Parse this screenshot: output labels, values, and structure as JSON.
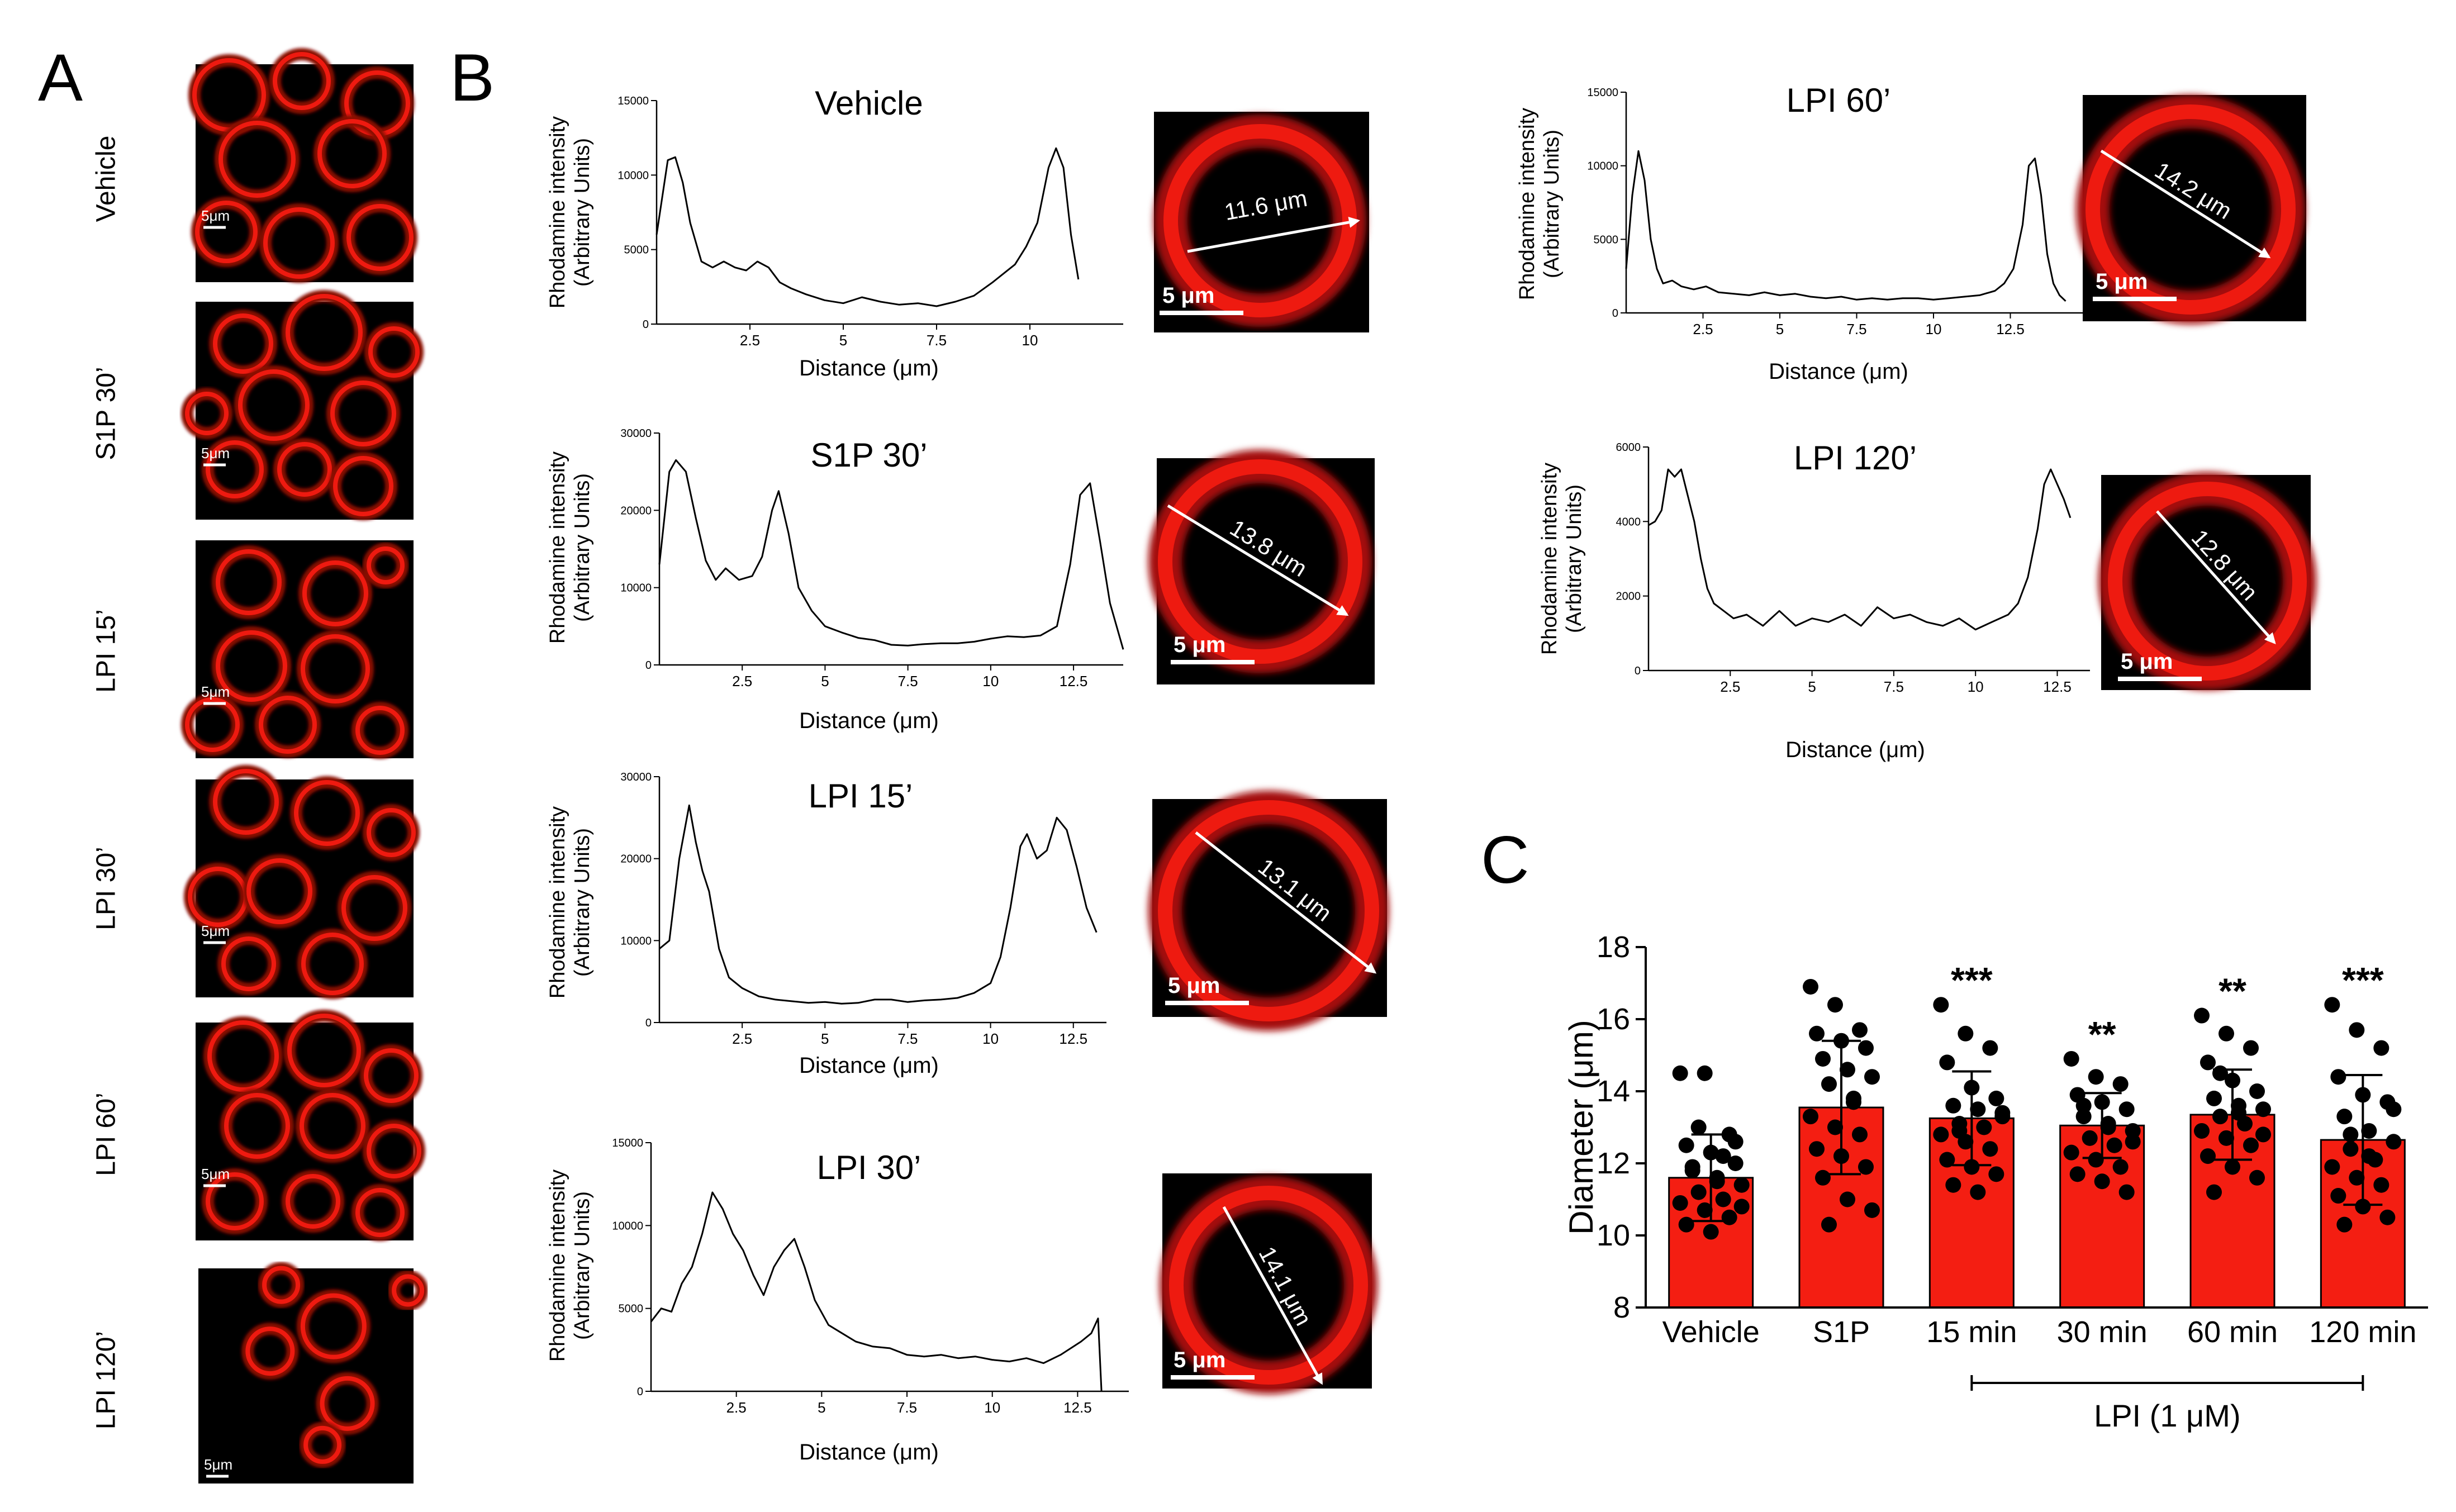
{
  "panel_labels": {
    "a": "A",
    "b": "B",
    "c": "C"
  },
  "colors": {
    "bar": "#f41e12",
    "cell": "#ee1a10",
    "background": "#000000",
    "line": "#000000"
  },
  "panel_a": {
    "scale_label": "5μm",
    "images": [
      {
        "label": "Vehicle"
      },
      {
        "label": "S1P 30’"
      },
      {
        "label": "LPI 15’"
      },
      {
        "label": "LPI 30’"
      },
      {
        "label": "LPI 60’"
      },
      {
        "label": "LPI 120’"
      }
    ]
  },
  "micrographs_b": [
    {
      "measure": "11.6 μm",
      "scale": "5 μm"
    },
    {
      "measure": "13.8 μm",
      "scale": "5 μm"
    },
    {
      "measure": "13.1 μm",
      "scale": "5 μm"
    },
    {
      "measure": "14.1 μm",
      "scale": "5 μm"
    },
    {
      "measure": "14.2 μm",
      "scale": "5 μm"
    },
    {
      "measure": "12.8 μm",
      "scale": "5 μm"
    }
  ],
  "chart_data": [
    {
      "type": "line",
      "title": "Vehicle",
      "xlabel": "Distance (μm)",
      "ylabel": [
        "Rhodamine intensity",
        "(Arbitrary Units)"
      ],
      "xlim": [
        0,
        12.5
      ],
      "ylim": [
        0,
        15000
      ],
      "xticks": [
        2.5,
        5.0,
        7.5,
        10
      ],
      "yticks": [
        0,
        5000,
        10000,
        15000
      ],
      "x": [
        0,
        0.3,
        0.5,
        0.7,
        0.9,
        1.2,
        1.5,
        1.8,
        2.1,
        2.4,
        2.7,
        3.0,
        3.3,
        3.6,
        4,
        4.5,
        5,
        5.5,
        6,
        6.5,
        7,
        7.5,
        8,
        8.5,
        9,
        9.3,
        9.6,
        9.9,
        10.2,
        10.5,
        10.7,
        10.9,
        11.1,
        11.3
      ],
      "y": [
        6000,
        11000,
        11200,
        9500,
        6800,
        4200,
        3800,
        4200,
        3800,
        3600,
        4200,
        3800,
        2800,
        2400,
        2000,
        1600,
        1400,
        1800,
        1500,
        1300,
        1400,
        1200,
        1500,
        1900,
        2800,
        3400,
        4000,
        5200,
        6800,
        10500,
        11800,
        10500,
        6000,
        3000
      ]
    },
    {
      "type": "line",
      "title": "S1P 30’",
      "xlabel": "Distance (μm)",
      "ylabel": [
        "Rhodamine intensity",
        "(Arbitrary Units)"
      ],
      "xlim": [
        0,
        14
      ],
      "ylim": [
        0,
        30000
      ],
      "xticks": [
        2.5,
        5.0,
        7.5,
        10,
        12.5
      ],
      "yticks": [
        0,
        10000,
        20000,
        30000
      ],
      "x": [
        0,
        0.3,
        0.5,
        0.8,
        1.1,
        1.4,
        1.7,
        2.0,
        2.4,
        2.8,
        3.1,
        3.4,
        3.6,
        3.9,
        4.2,
        4.6,
        5,
        5.5,
        6,
        6.5,
        7,
        7.5,
        8,
        8.5,
        9,
        9.5,
        10,
        10.5,
        11,
        11.5,
        12,
        12.4,
        12.7,
        13.0,
        13.3,
        13.6,
        14
      ],
      "y": [
        13000,
        25000,
        26500,
        25000,
        19000,
        13500,
        11000,
        12500,
        11000,
        11500,
        14000,
        20000,
        22500,
        17000,
        10000,
        7000,
        5000,
        4200,
        3500,
        3200,
        2600,
        2500,
        2700,
        2800,
        2800,
        3000,
        3400,
        3700,
        3600,
        3800,
        5000,
        13000,
        22000,
        23500,
        16000,
        8000,
        2000
      ]
    },
    {
      "type": "line",
      "title": "LPI 15’",
      "xlabel": "Distance (μm)",
      "ylabel": [
        "Rhodamine intensity",
        "(Arbitrary Units)"
      ],
      "xlim": [
        0,
        13.5
      ],
      "ylim": [
        0,
        30000
      ],
      "xticks": [
        2.5,
        5.0,
        7.5,
        10,
        12.5
      ],
      "yticks": [
        0,
        10000,
        20000,
        30000
      ],
      "x": [
        0,
        0.3,
        0.6,
        0.9,
        1.1,
        1.3,
        1.5,
        1.8,
        2.1,
        2.5,
        3,
        3.5,
        4,
        4.5,
        5,
        5.5,
        6,
        6.5,
        7,
        7.5,
        8,
        8.5,
        9,
        9.5,
        10,
        10.3,
        10.6,
        10.9,
        11.1,
        11.4,
        11.7,
        12,
        12.3,
        12.6,
        12.9,
        13.2
      ],
      "y": [
        9000,
        10000,
        20000,
        26500,
        22000,
        18500,
        16000,
        9000,
        5500,
        4200,
        3200,
        2800,
        2600,
        2400,
        2500,
        2300,
        2400,
        2800,
        2800,
        2500,
        2700,
        2800,
        3000,
        3600,
        4800,
        8000,
        14000,
        21500,
        23000,
        20000,
        21000,
        25000,
        23500,
        19000,
        14000,
        11000
      ]
    },
    {
      "type": "line",
      "title": "LPI 30’",
      "xlabel": "Distance (μm)",
      "ylabel": [
        "Rhodamine intensity",
        "(Arbitrary Units)"
      ],
      "xlim": [
        0,
        14
      ],
      "ylim": [
        0,
        15000
      ],
      "xticks": [
        2.5,
        5.0,
        7.5,
        10,
        12.5
      ],
      "yticks": [
        0,
        5000,
        10000,
        15000
      ],
      "x": [
        0,
        0.3,
        0.6,
        0.9,
        1.2,
        1.5,
        1.8,
        2.1,
        2.4,
        2.7,
        3.0,
        3.3,
        3.6,
        3.9,
        4.2,
        4.5,
        4.8,
        5.2,
        5.6,
        6,
        6.5,
        7,
        7.5,
        8,
        8.5,
        9,
        9.5,
        10,
        10.5,
        11,
        11.5,
        12,
        12.3,
        12.6,
        12.9,
        13.1,
        13.2
      ],
      "y": [
        4200,
        5000,
        4800,
        6500,
        7500,
        9500,
        12000,
        11000,
        9500,
        8500,
        7000,
        5800,
        7500,
        8500,
        9200,
        7500,
        5500,
        4000,
        3500,
        3000,
        2700,
        2600,
        2200,
        2100,
        2200,
        2000,
        2100,
        1900,
        1800,
        2000,
        1700,
        2200,
        2600,
        3000,
        3500,
        4400,
        0
      ]
    },
    {
      "type": "line",
      "title": "LPI 60’",
      "xlabel": "Distance (μm)",
      "ylabel": [
        "Rhodamine intensity",
        "(Arbitrary Units)"
      ],
      "xlim": [
        0,
        15
      ],
      "ylim": [
        0,
        15000
      ],
      "xticks": [
        2.5,
        5.0,
        7.5,
        10,
        12.5
      ],
      "yticks": [
        0,
        5000,
        10000,
        15000
      ],
      "x": [
        0,
        0.2,
        0.4,
        0.6,
        0.8,
        1.0,
        1.2,
        1.5,
        1.8,
        2.2,
        2.6,
        3,
        3.5,
        4,
        4.5,
        5,
        5.5,
        6,
        6.5,
        7,
        7.5,
        8,
        8.5,
        9,
        9.5,
        10,
        10.5,
        11,
        11.5,
        12,
        12.3,
        12.6,
        12.9,
        13.1,
        13.3,
        13.5,
        13.7,
        13.9,
        14.1,
        14.3
      ],
      "y": [
        3000,
        8000,
        11000,
        9000,
        5000,
        3000,
        2000,
        2200,
        1800,
        1600,
        1800,
        1400,
        1300,
        1200,
        1400,
        1200,
        1300,
        1100,
        1000,
        1100,
        900,
        1000,
        900,
        1000,
        1000,
        900,
        1000,
        1100,
        1200,
        1500,
        2000,
        3000,
        6000,
        10000,
        10500,
        8000,
        4000,
        2000,
        1200,
        800
      ]
    },
    {
      "type": "line",
      "title": "LPI 120’",
      "xlabel": "Distance (μm)",
      "ylabel": [
        "Rhodamine intensity",
        "(Arbitrary Units)"
      ],
      "xlim": [
        0,
        13.5
      ],
      "ylim": [
        0,
        6000
      ],
      "xticks": [
        2.5,
        5.0,
        7.5,
        10,
        12.5
      ],
      "yticks": [
        0,
        2000,
        4000,
        6000
      ],
      "x": [
        0,
        0.2,
        0.4,
        0.6,
        0.8,
        1.0,
        1.2,
        1.4,
        1.6,
        1.8,
        2.0,
        2.3,
        2.6,
        3,
        3.5,
        4,
        4.5,
        5,
        5.5,
        6,
        6.5,
        7,
        7.5,
        8,
        8.5,
        9,
        9.5,
        10,
        10.5,
        11,
        11.3,
        11.6,
        11.9,
        12.1,
        12.3,
        12.5,
        12.7,
        12.9
      ],
      "y": [
        3900,
        4000,
        4300,
        5400,
        5200,
        5400,
        4700,
        4000,
        3000,
        2200,
        1800,
        1600,
        1400,
        1500,
        1200,
        1600,
        1200,
        1400,
        1300,
        1500,
        1200,
        1700,
        1400,
        1500,
        1300,
        1200,
        1400,
        1100,
        1300,
        1500,
        1800,
        2500,
        3800,
        5000,
        5400,
        5000,
        4600,
        4100
      ]
    },
    {
      "type": "bar",
      "title": "",
      "categories": [
        "Vehicle",
        "S1P",
        "15 min",
        "30 min",
        "60 min",
        "120 min"
      ],
      "values": [
        11.6,
        13.55,
        13.25,
        13.05,
        13.35,
        12.65
      ],
      "sd": [
        1.2,
        1.85,
        1.3,
        0.9,
        1.25,
        1.8
      ],
      "significance": [
        "",
        "",
        "***",
        "**",
        "**",
        "***"
      ],
      "ylabel": "Diameter (μm)",
      "xlabel": "",
      "ylim": [
        8,
        18
      ],
      "yticks": [
        8,
        10,
        12,
        14,
        16,
        18
      ],
      "group_label": "LPI (1 μM)",
      "points": [
        [
          14.5,
          14.5,
          12.8,
          12.5,
          12.3,
          12.0,
          11.8,
          11.5,
          11.4,
          11.2,
          11.0,
          10.9,
          10.7,
          10.5,
          10.3,
          10.1,
          12.6,
          11.9,
          11.6,
          10.8,
          13.0,
          12.2
        ],
        [
          16.9,
          16.4,
          15.7,
          15.6,
          15.4,
          15.2,
          14.9,
          14.6,
          14.4,
          14.2,
          13.7,
          13.3,
          13.0,
          12.8,
          12.4,
          12.2,
          11.9,
          11.6,
          11.0,
          10.7,
          10.3,
          13.8
        ],
        [
          16.4,
          15.6,
          15.2,
          14.8,
          14.1,
          13.8,
          13.6,
          13.5,
          13.3,
          13.1,
          13.0,
          12.8,
          12.6,
          12.4,
          12.1,
          11.9,
          11.7,
          11.4,
          11.2,
          13.4,
          12.9
        ],
        [
          14.9,
          14.4,
          14.2,
          13.9,
          13.7,
          13.5,
          13.3,
          13.1,
          12.9,
          12.7,
          12.5,
          12.3,
          12.1,
          11.9,
          11.7,
          11.5,
          11.2,
          13.6,
          13.0,
          12.6
        ],
        [
          16.1,
          15.6,
          15.2,
          14.8,
          14.3,
          14.0,
          13.8,
          13.6,
          13.5,
          13.3,
          13.1,
          12.9,
          12.7,
          12.5,
          12.2,
          11.9,
          11.6,
          11.2,
          13.4,
          12.8,
          14.5
        ],
        [
          16.4,
          15.7,
          15.2,
          14.4,
          13.9,
          13.7,
          13.3,
          12.9,
          12.6,
          12.4,
          12.1,
          11.9,
          11.6,
          11.4,
          11.1,
          10.8,
          10.5,
          10.3,
          12.2,
          13.5,
          12.8
        ]
      ]
    }
  ]
}
